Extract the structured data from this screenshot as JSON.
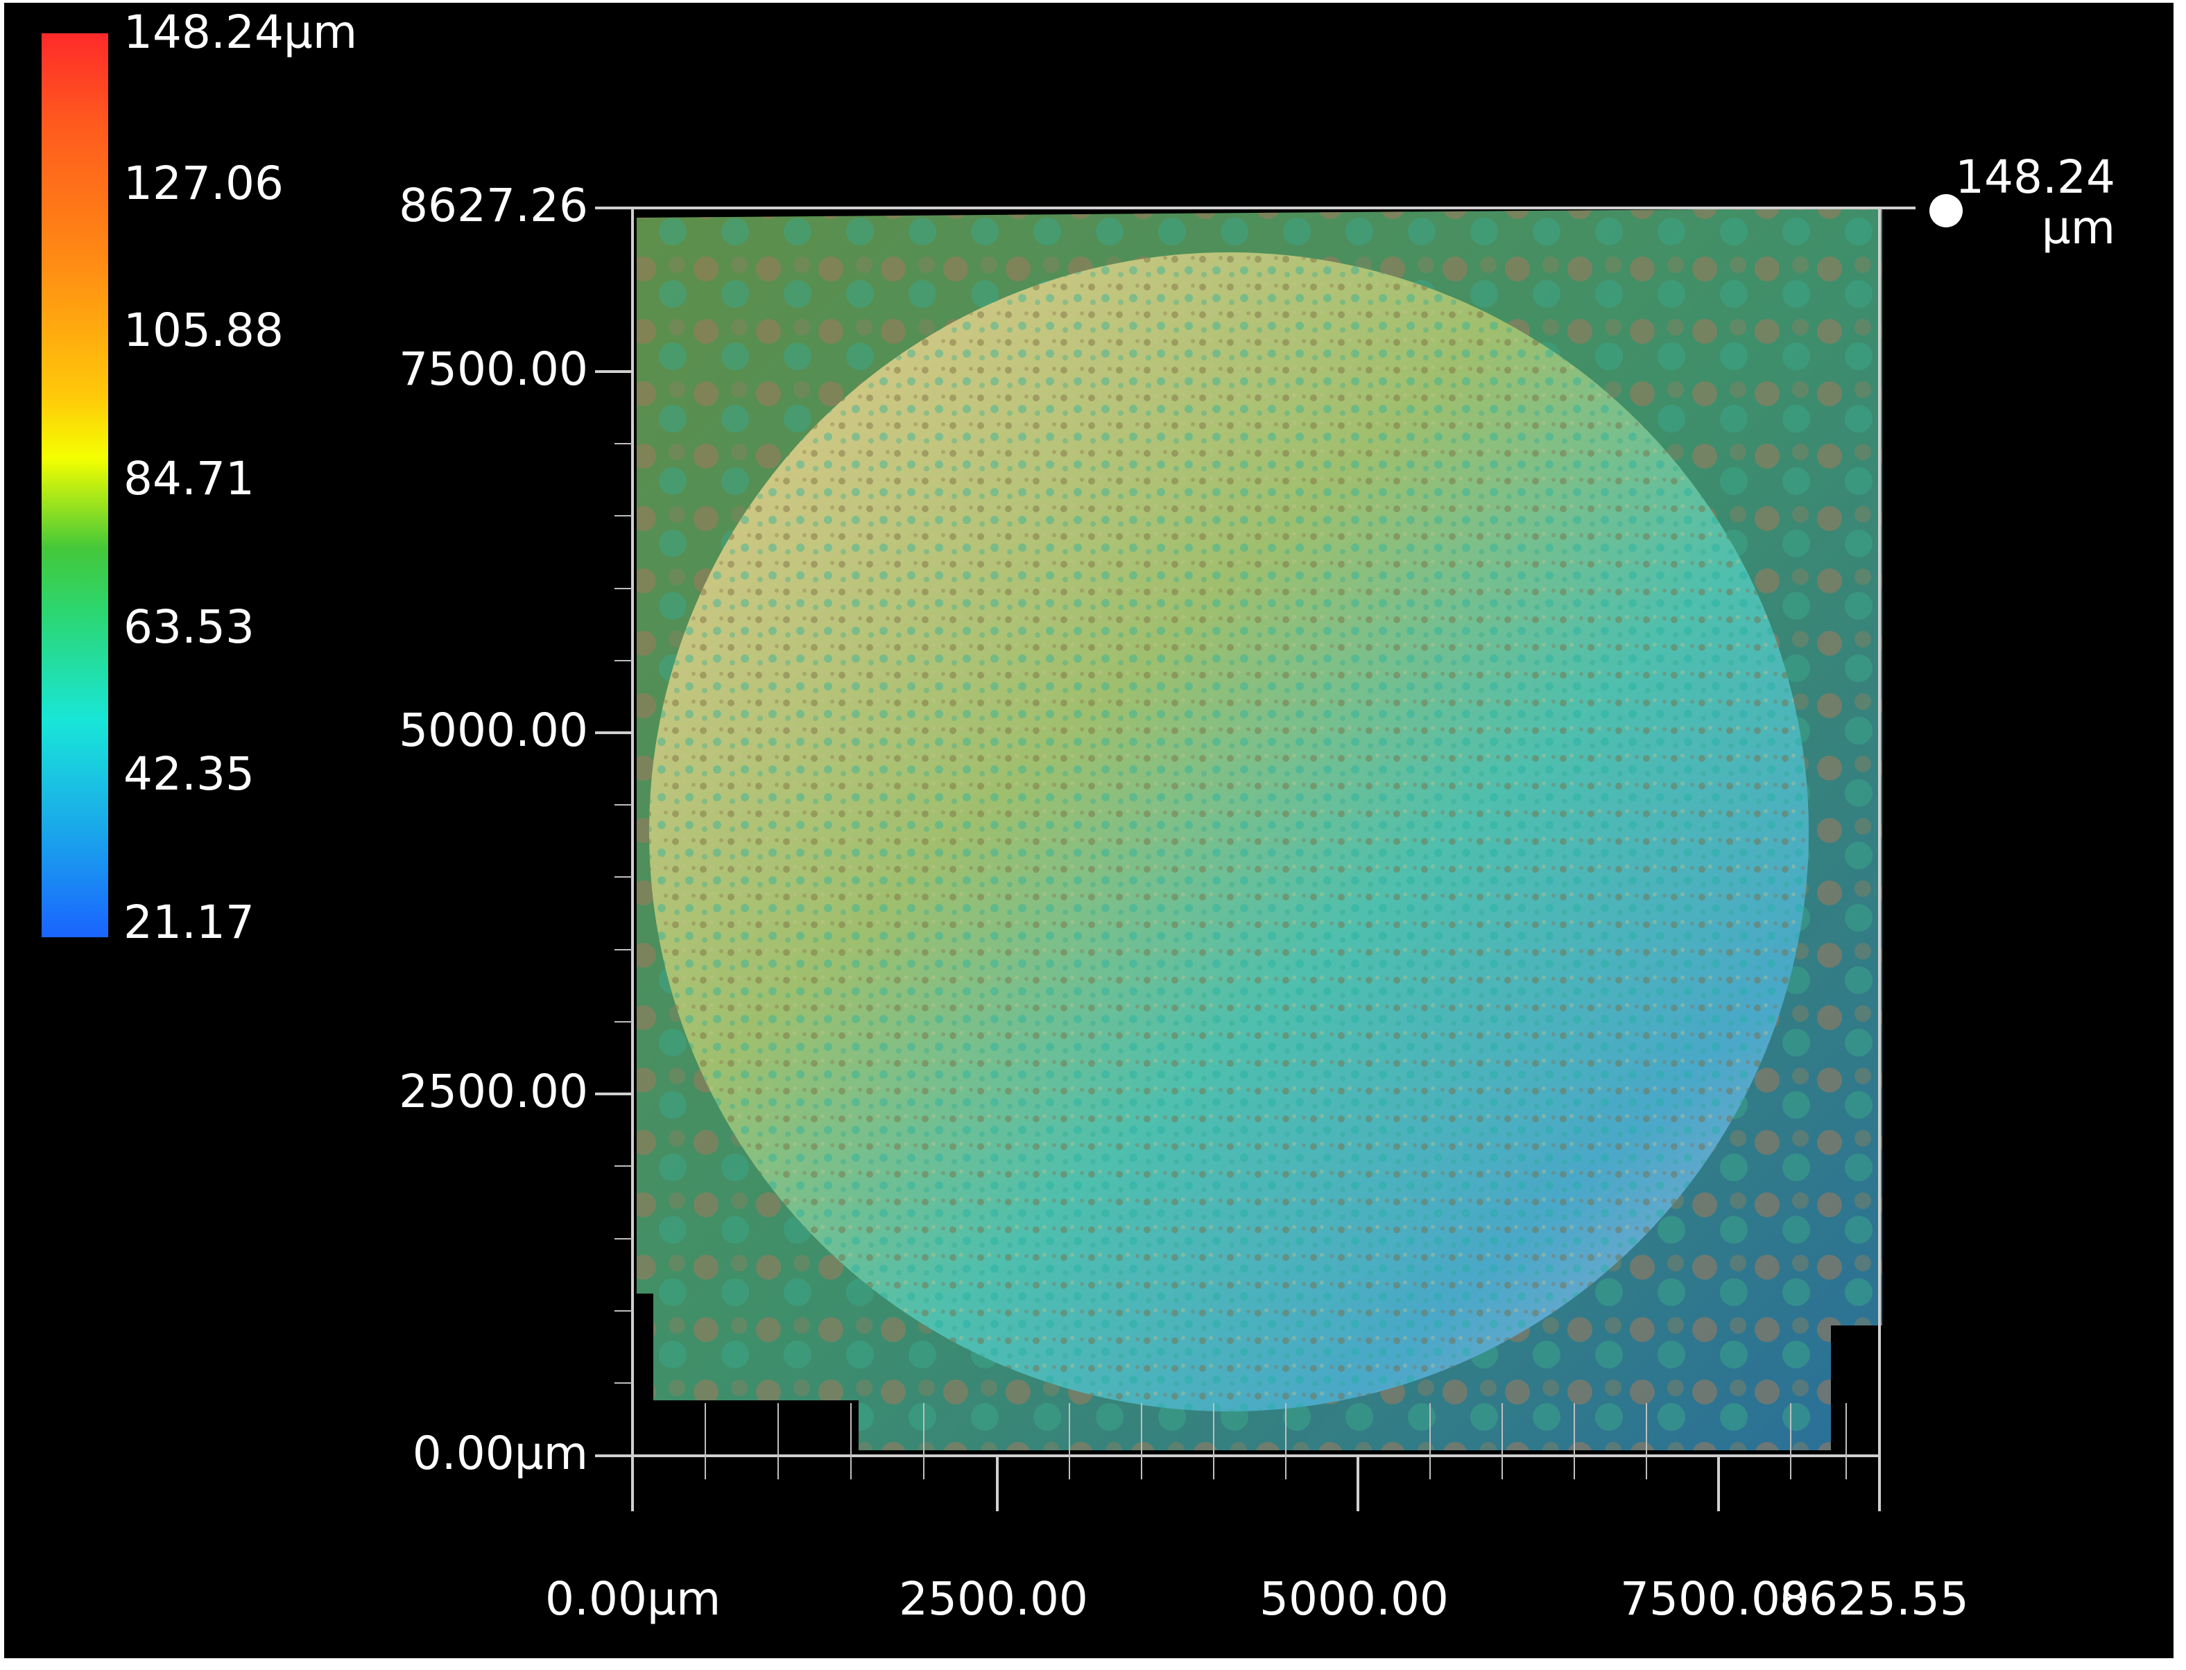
{
  "colorbar": {
    "labels": [
      "148.24µm",
      "127.06",
      "105.88",
      "84.71",
      "63.53",
      "42.35",
      "21.17"
    ]
  },
  "y_axis": {
    "ticks": [
      "8627.26",
      "7500.00",
      "5000.00",
      "2500.00",
      "0.00µm"
    ]
  },
  "x_axis": {
    "ticks": [
      "0.00µm",
      "2500.00",
      "5000.00",
      "7500.00",
      "8625.55"
    ]
  },
  "z_marker": {
    "value": "148.24",
    "unit": "µm"
  },
  "colors": {
    "background": "#000000",
    "axis": "#d0d0d0",
    "text": "#ffffff"
  },
  "icons": {
    "z_marker": "dot-icon"
  }
}
